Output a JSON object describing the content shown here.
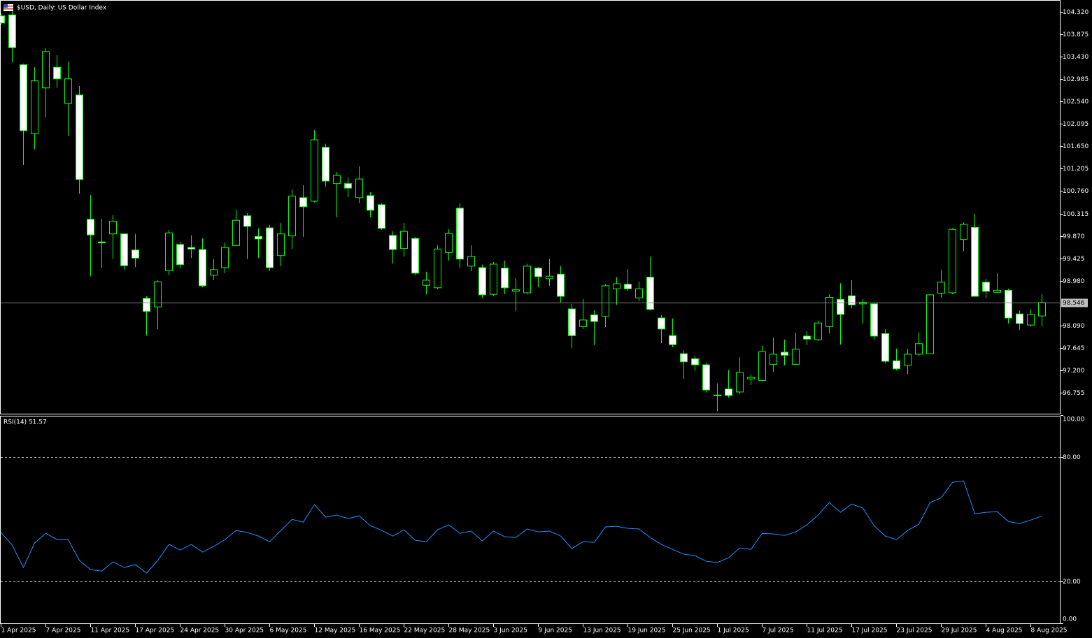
{
  "chart_data": [
    {
      "type": "candlestick",
      "title": "$USD, Daily: US Dollar Index",
      "categories": [
        "1 Apr 2025",
        null,
        null,
        null,
        "7 Apr 2025",
        null,
        null,
        null,
        "11 Apr 2025",
        null,
        null,
        null,
        "17 Apr 2025",
        null,
        null,
        null,
        "24 Apr 2025",
        null,
        null,
        null,
        "30 Apr 2025",
        null,
        null,
        null,
        "6 May 2025",
        null,
        null,
        null,
        "12 May 2025",
        null,
        null,
        null,
        "16 May 2025",
        null,
        null,
        null,
        "22 May 2025",
        null,
        null,
        null,
        "28 May 2025",
        null,
        null,
        null,
        "3 Jun 2025",
        null,
        null,
        null,
        "9 Jun 2025",
        null,
        null,
        null,
        "13 Jun 2025",
        null,
        null,
        null,
        "19 Jun 2025",
        null,
        null,
        null,
        "25 Jun 2025",
        null,
        null,
        null,
        "1 Jul 2025",
        null,
        null,
        null,
        "7 Jul 2025",
        null,
        null,
        null,
        "11 Jul 2025",
        null,
        null,
        null,
        "17 Jul 2025",
        null,
        null,
        null,
        "23 Jul 2025",
        null,
        null,
        null,
        "29 Jul 2025",
        null,
        null,
        null,
        "4 Aug 2025",
        null,
        null,
        null,
        "8 Aug 2025",
        null
      ],
      "open": [
        104.24,
        104.26,
        103.27,
        101.9,
        102.81,
        103.22,
        102.5,
        102.67,
        100.2,
        99.75,
        99.91,
        99.91,
        99.59,
        98.63,
        98.46,
        99.18,
        99.7,
        99.64,
        99.6,
        99.09,
        99.24,
        99.68,
        100.27,
        99.86,
        100.03,
        99.48,
        99.87,
        100.63,
        100.56,
        101.63,
        100.91,
        100.91,
        100.63,
        100.67,
        100.49,
        99.88,
        99.62,
        99.82,
        98.89,
        98.84,
        99.54,
        100.42,
        99.27,
        99.24,
        98.71,
        99.23,
        98.77,
        98.74,
        99.23,
        99.02,
        99.11,
        98.42,
        98.07,
        98.3,
        98.27,
        98.82,
        98.91,
        98.64,
        99.05,
        98.24,
        97.89,
        97.53,
        97.43,
        97.31,
        96.7,
        96.83,
        96.77,
        97.03,
        97.0,
        97.32,
        97.56,
        97.32,
        97.88,
        97.81,
        98.07,
        98.61,
        98.68,
        98.52,
        98.52,
        97.93,
        97.39,
        97.3,
        97.52,
        97.53,
        98.73,
        98.74,
        99.8,
        100.04,
        98.95,
        98.75,
        98.79,
        98.32,
        98.1,
        98.28
      ],
      "high": [
        104.29,
        104.33,
        103.29,
        103.22,
        103.6,
        103.46,
        103.33,
        102.85,
        100.68,
        100.21,
        100.28,
        99.92,
        99.91,
        98.67,
        98.99,
        99.99,
        99.75,
        99.88,
        99.82,
        99.41,
        99.74,
        100.39,
        100.32,
        100.02,
        100.09,
        100.13,
        100.79,
        100.88,
        101.97,
        101.7,
        101.14,
        101.03,
        101.25,
        100.74,
        100.52,
        99.96,
        100.13,
        99.85,
        99.16,
        99.68,
        100.0,
        100.52,
        99.68,
        99.3,
        99.35,
        99.38,
        99.03,
        99.32,
        99.25,
        99.41,
        99.27,
        98.52,
        98.62,
        98.39,
        98.91,
        99.05,
        99.21,
        98.96,
        99.46,
        98.3,
        98.23,
        97.6,
        97.49,
        97.35,
        96.94,
        97.21,
        97.46,
        97.12,
        97.69,
        97.85,
        97.81,
        97.95,
        97.98,
        98.19,
        98.71,
        98.93,
        98.99,
        98.61,
        98.55,
        98.02,
        97.63,
        97.63,
        97.95,
        98.71,
        99.2,
        100.02,
        100.14,
        100.31,
        99.02,
        99.13,
        98.82,
        98.39,
        98.41,
        98.71
      ],
      "low": [
        104.06,
        103.32,
        101.28,
        101.59,
        102.22,
        102.81,
        101.86,
        100.71,
        99.07,
        99.24,
        99.41,
        99.2,
        99.25,
        97.89,
        98.02,
        99.09,
        99.23,
        99.43,
        98.85,
        98.99,
        99.13,
        99.66,
        99.41,
        99.43,
        99.17,
        99.27,
        99.61,
        99.85,
        100.53,
        100.85,
        100.24,
        100.64,
        100.52,
        100.24,
        99.99,
        99.32,
        99.46,
        99.09,
        98.71,
        98.81,
        99.38,
        99.23,
        99.17,
        98.64,
        98.68,
        98.71,
        98.38,
        98.71,
        98.85,
        98.88,
        98.55,
        97.64,
        98.02,
        97.7,
        98.06,
        98.5,
        98.78,
        98.57,
        98.39,
        97.74,
        97.66,
        97.03,
        97.19,
        96.76,
        96.39,
        96.66,
        96.73,
        96.91,
        96.98,
        97.17,
        97.3,
        97.3,
        97.7,
        97.78,
        97.93,
        97.71,
        98.43,
        98.13,
        97.81,
        97.34,
        97.2,
        97.13,
        97.49,
        97.53,
        98.64,
        98.71,
        99.57,
        98.66,
        98.63,
        98.74,
        98.13,
        98.0,
        98.07,
        98.07
      ],
      "close": [
        104.1,
        103.61,
        101.96,
        102.95,
        103.53,
        102.99,
        102.99,
        100.99,
        99.89,
        99.73,
        100.16,
        99.28,
        99.43,
        98.37,
        98.96,
        99.93,
        99.3,
        99.61,
        98.88,
        99.2,
        99.64,
        100.18,
        100.06,
        99.81,
        99.24,
        99.91,
        100.66,
        100.45,
        101.78,
        100.96,
        101.07,
        100.82,
        101.0,
        100.38,
        100.02,
        99.6,
        99.96,
        99.13,
        98.99,
        99.61,
        99.92,
        99.41,
        99.46,
        98.7,
        99.31,
        98.84,
        98.8,
        99.27,
        99.06,
        99.07,
        98.67,
        97.89,
        98.2,
        98.17,
        98.88,
        98.92,
        98.82,
        98.82,
        98.41,
        98.02,
        97.71,
        97.37,
        97.31,
        96.81,
        96.71,
        96.7,
        97.16,
        97.06,
        97.57,
        97.52,
        97.5,
        97.62,
        97.82,
        98.14,
        98.65,
        98.31,
        98.5,
        98.55,
        97.88,
        97.38,
        97.23,
        97.52,
        97.73,
        98.7,
        98.95,
        100.0,
        100.1,
        98.67,
        98.77,
        98.79,
        98.24,
        98.13,
        98.31,
        98.546
      ],
      "last_price": 98.546,
      "ylim": [
        96.325,
        104.542
      ],
      "yticks": [
        {
          "value": 104.32,
          "label": "104.320"
        },
        103.875,
        {
          "value": 103.43,
          "label": "103.430"
        },
        102.985,
        {
          "value": 102.54,
          "label": "102.540"
        },
        102.095,
        {
          "value": 101.65,
          "label": "101.650"
        },
        101.205,
        {
          "value": 100.76,
          "label": "100.760"
        },
        100.315,
        {
          "value": 99.87,
          "label": "99.870"
        },
        99.425,
        {
          "value": 98.98,
          "label": "98.980"
        },
        {
          "value": 98.09,
          "label": "98.090"
        },
        97.645,
        {
          "value": 97.2,
          "label": "97.200"
        },
        96.755
      ],
      "up_color": "#000000",
      "down_color": "#ffffff",
      "outline_color": "#00ff00",
      "last_price_color": "#c0c0c0"
    },
    {
      "type": "line",
      "title": "RSI(14) 51.57",
      "values": [
        43.6,
        37.5,
        26.8,
        38.6,
        43.2,
        40.2,
        40.2,
        30.2,
        25.8,
        25.1,
        29.5,
        26.8,
        28.2,
        24.1,
        30.2,
        37.9,
        35.2,
        37.9,
        34.2,
        36.9,
        40.2,
        44.6,
        43.6,
        41.9,
        39.2,
        44.6,
        49.9,
        48.6,
        57.0,
        51.0,
        52.0,
        50.3,
        51.6,
        46.9,
        44.6,
        41.9,
        44.9,
        39.9,
        39.2,
        44.9,
        47.3,
        43.2,
        44.3,
        39.6,
        44.3,
        41.6,
        41.2,
        45.3,
        43.9,
        44.3,
        41.9,
        35.9,
        39.2,
        38.9,
        46.3,
        46.6,
        45.6,
        45.3,
        41.2,
        37.9,
        35.5,
        33.2,
        32.5,
        29.8,
        29.2,
        31.5,
        36.2,
        35.5,
        43.2,
        42.9,
        42.2,
        43.9,
        47.3,
        52.0,
        58.0,
        53.3,
        57.3,
        55.3,
        46.9,
        41.9,
        40.2,
        44.6,
        47.6,
        58.0,
        60.3,
        67.7,
        68.4,
        52.6,
        53.3,
        53.6,
        48.9,
        47.9,
        49.6,
        51.57
      ],
      "color": "#1e90ff",
      "ylim": [
        0,
        100
      ],
      "yticks": [
        {
          "value": 100,
          "label": "100.00"
        },
        {
          "value": 80,
          "label": "80.00"
        },
        {
          "value": 20,
          "label": "20.00"
        },
        {
          "value": 0,
          "label": "0.00"
        }
      ],
      "levels": [
        80,
        20
      ]
    }
  ]
}
